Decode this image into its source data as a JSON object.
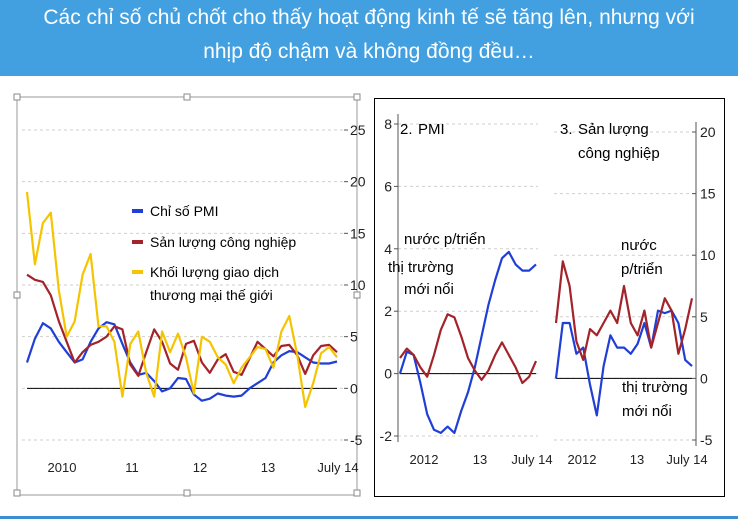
{
  "slide": {
    "title_line1": "Các chỉ số chủ chốt cho thấy hoạt động kinh tế sẽ tăng lên, nhưng với",
    "title_line2": "nhịp độ chậm và không đồng đều…",
    "title_color": "#ffffff",
    "title_bar_color": "#43a0e0"
  },
  "colors": {
    "pmi": "#1f3fd6",
    "industrial": "#a3232a",
    "trade": "#f5c400",
    "advanced": "#1f3fd6",
    "emerging": "#a3232a"
  },
  "left_chart": {
    "legend": {
      "pmi": "Chỉ số PMI",
      "industrial": "Sản lượng công nghiệp",
      "trade_line1": "Khối lượng giao dịch",
      "trade_line2": "thương mại thế giới"
    },
    "y_ticks": [
      "25",
      "20",
      "15",
      "10",
      "5",
      "0",
      "-5"
    ],
    "x_ticks": [
      "2010",
      "11",
      "12",
      "13",
      "July 14"
    ]
  },
  "pmi_chart": {
    "label_number": "2.",
    "label": "PMI",
    "y_ticks": [
      "8",
      "6",
      "4",
      "2",
      "0",
      "-2"
    ],
    "x_ticks": [
      "2012",
      "13",
      "July 14"
    ],
    "legend_advanced": "nước p/triển",
    "legend_emerging_line1": "thị trường",
    "legend_emerging_line2": "mới nổi"
  },
  "ip_chart": {
    "label_number": "3.",
    "label_line1": "Sản lượng",
    "label_line2": "công nghiệp",
    "y_ticks": [
      "20",
      "15",
      "10",
      "5",
      "0",
      "-5"
    ],
    "x_ticks": [
      "2012",
      "13",
      "July 14"
    ],
    "legend_advanced_line1": "nước",
    "legend_advanced_line2": "p/triển",
    "legend_emerging_line1": "thị trường",
    "legend_emerging_line2": "mới nổi"
  },
  "chart_data": [
    {
      "type": "line",
      "title": "",
      "ylim": [
        -5,
        25
      ],
      "x_ticks": [
        "2010",
        "11",
        "12",
        "13",
        "July 14"
      ],
      "series": [
        {
          "name": "Chỉ số PMI",
          "values": [
            2.5,
            4.8,
            6.3,
            5.8,
            4.5,
            3.5,
            2.5,
            2.8,
            4.5,
            5.8,
            6.4,
            6.2,
            4.3,
            2.5,
            1.3,
            1.5,
            0.7,
            -0.3,
            0,
            1.0,
            0.9,
            -0.6,
            -1.2,
            -1.0,
            -0.5,
            -0.7,
            -0.8,
            -0.7,
            0,
            0.5,
            1.0,
            2.5,
            3.2,
            3.6,
            3.5,
            3.0,
            2.5,
            2.4,
            2.4,
            2.6
          ]
        },
        {
          "name": "Sản lượng công nghiệp",
          "values": [
            11,
            10.5,
            10.3,
            9,
            6.5,
            4.5,
            2.5,
            3.5,
            4.2,
            4.5,
            5,
            6,
            5.7,
            2.3,
            1.2,
            3.5,
            5.7,
            4.5,
            2.4,
            1.8,
            4.3,
            4.6,
            2.5,
            1.5,
            2.8,
            3.3,
            1.6,
            1.3,
            2.9,
            4.5,
            3.8,
            3.1,
            4.1,
            4.2,
            3.2,
            1.4,
            3.2,
            4.1,
            4.2,
            3.5
          ]
        },
        {
          "name": "Khối lượng giao dịch thương mại thế giới",
          "values": [
            19,
            12,
            16,
            17,
            9.5,
            5,
            6.5,
            11,
            13,
            6,
            6,
            4.5,
            -0.8,
            4.3,
            5.5,
            1.5,
            -0.8,
            5.5,
            3.5,
            5.3,
            3,
            -0.5,
            5,
            4.5,
            3,
            2.3,
            0.5,
            2,
            3,
            4,
            3.8,
            2,
            5.5,
            7,
            3.2,
            -1.8,
            0.5,
            3.4,
            4,
            3
          ]
        }
      ]
    },
    {
      "type": "line",
      "title": "PMI",
      "ylim": [
        -2,
        8
      ],
      "x_ticks": [
        "2012",
        "13",
        "July 14"
      ],
      "series": [
        {
          "name": "nước p/triển",
          "values": [
            0,
            0.7,
            0.6,
            -0.3,
            -1.3,
            -1.8,
            -1.9,
            -1.7,
            -1.9,
            -1.2,
            -0.6,
            0.2,
            1.2,
            2.2,
            3.0,
            3.7,
            3.9,
            3.5,
            3.3,
            3.3,
            3.5
          ]
        },
        {
          "name": "thị trường mới nổi",
          "values": [
            0.5,
            0.8,
            0.6,
            0.2,
            -0.1,
            0.6,
            1.4,
            1.9,
            1.8,
            1.2,
            0.5,
            0.1,
            -0.2,
            0.1,
            0.6,
            1.0,
            0.6,
            0.2,
            -0.3,
            -0.1,
            0.4
          ]
        }
      ]
    },
    {
      "type": "line",
      "title": "Sản lượng công nghiệp",
      "ylim": [
        -5,
        20
      ],
      "x_ticks": [
        "2012",
        "13",
        "July 14"
      ],
      "series": [
        {
          "name": "nước p/triển",
          "values": [
            0,
            4.5,
            4.5,
            2,
            2.5,
            -0.5,
            -3,
            1,
            3.5,
            2.5,
            2.5,
            2,
            2.8,
            4.5,
            2.5,
            5.5,
            5.3,
            5.5,
            4.5,
            1.5,
            1
          ]
        },
        {
          "name": "thị trường mới nổi",
          "values": [
            4.5,
            9.5,
            7.5,
            3,
            1.5,
            4,
            3.5,
            4.5,
            5.5,
            4.5,
            7.5,
            4.5,
            3.5,
            5.5,
            2.5,
            4.5,
            6.5,
            5.5,
            2,
            4,
            6.5
          ]
        }
      ]
    }
  ]
}
